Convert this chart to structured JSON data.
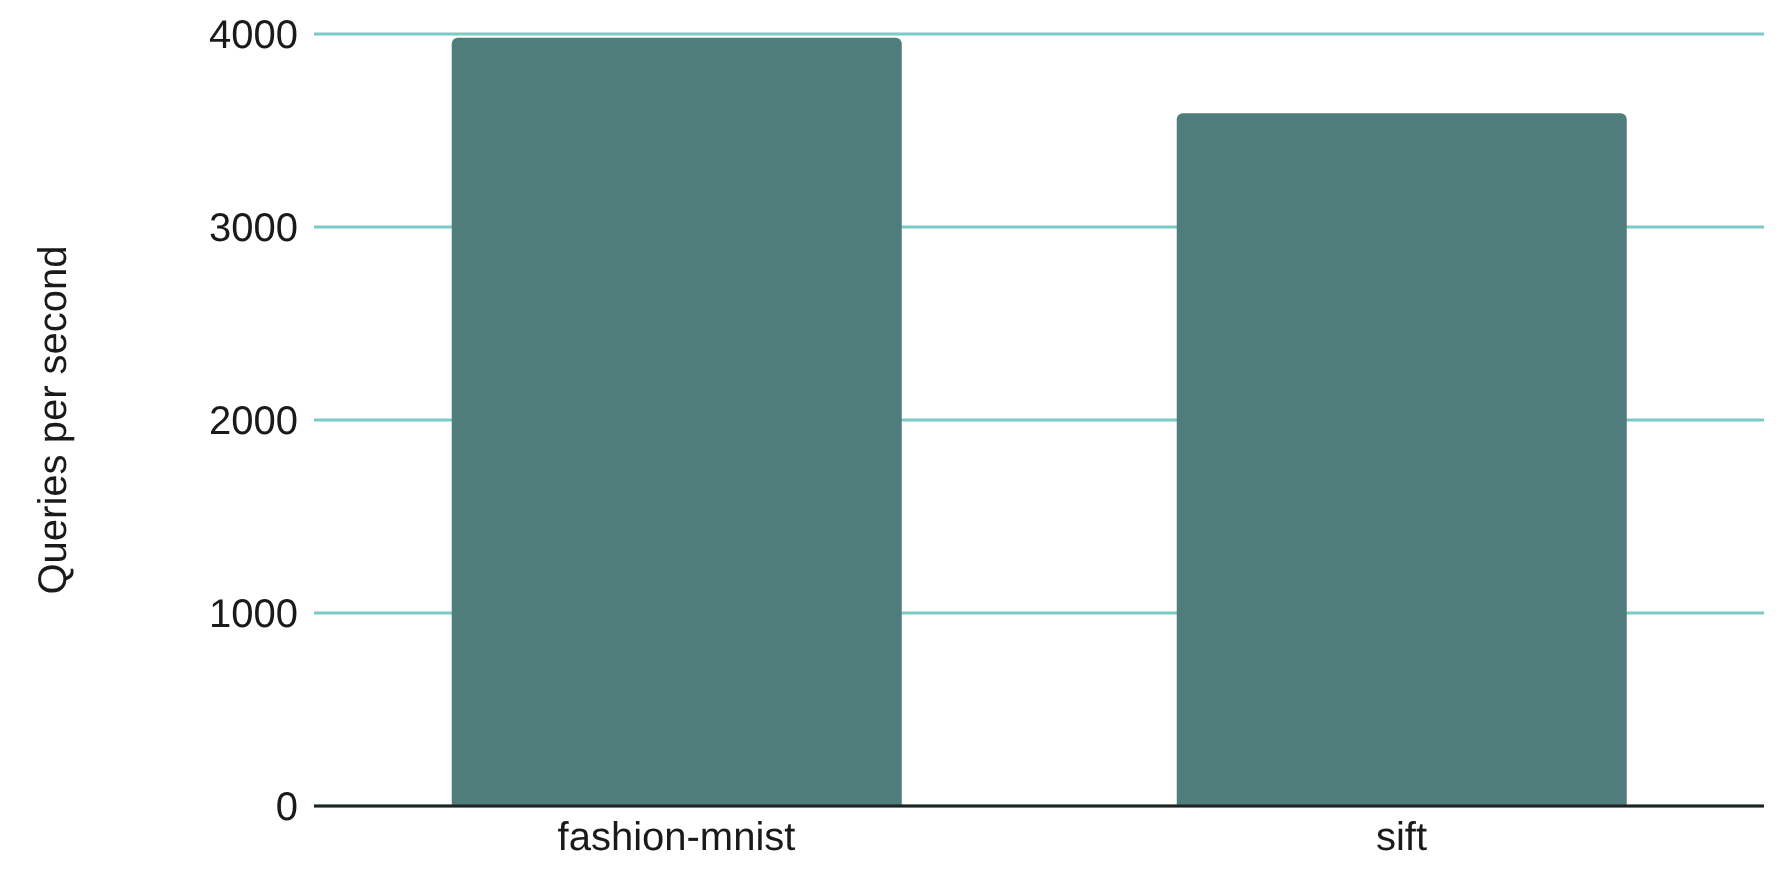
{
  "chart_data": {
    "type": "bar",
    "ylabel": "Queries per second",
    "categories": [
      "fashion-mnist",
      "sift"
    ],
    "values": [
      3980,
      3590
    ],
    "color": "#4e7d7b",
    "ylim": [
      0,
      4000
    ],
    "yticks": [
      0,
      1000,
      2000,
      3000,
      4000
    ],
    "grid": "y"
  }
}
